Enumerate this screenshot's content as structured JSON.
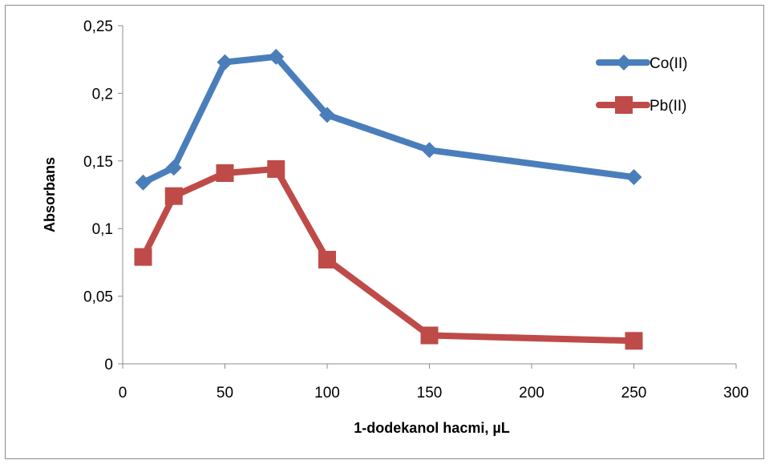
{
  "chart_data": {
    "type": "line",
    "title": "",
    "xlabel": "1-dodekanol hacmi, µL",
    "ylabel": "Absorbans",
    "xlim": [
      0,
      300
    ],
    "ylim": [
      0,
      0.25
    ],
    "xticks": [
      0,
      50,
      100,
      150,
      200,
      250,
      300
    ],
    "xtick_labels": [
      "0",
      "50",
      "100",
      "150",
      "200",
      "250",
      "300"
    ],
    "yticks": [
      0,
      0.05,
      0.1,
      0.15,
      0.2,
      0.25
    ],
    "ytick_labels": [
      "0",
      "0,05",
      "0,1",
      "0,15",
      "0,2",
      "0,25"
    ],
    "grid": false,
    "legend_position": "top-right",
    "series": [
      {
        "name": "Co(II)",
        "color": "#4a7ebb",
        "marker": "diamond",
        "x": [
          10,
          25,
          50,
          75,
          100,
          150,
          250
        ],
        "values": [
          0.134,
          0.145,
          0.223,
          0.227,
          0.184,
          0.158,
          0.138
        ]
      },
      {
        "name": "Pb(II)",
        "color": "#be4b48",
        "marker": "square",
        "x": [
          10,
          25,
          50,
          75,
          100,
          150,
          250
        ],
        "values": [
          0.079,
          0.124,
          0.141,
          0.144,
          0.077,
          0.021,
          0.017
        ]
      }
    ]
  }
}
